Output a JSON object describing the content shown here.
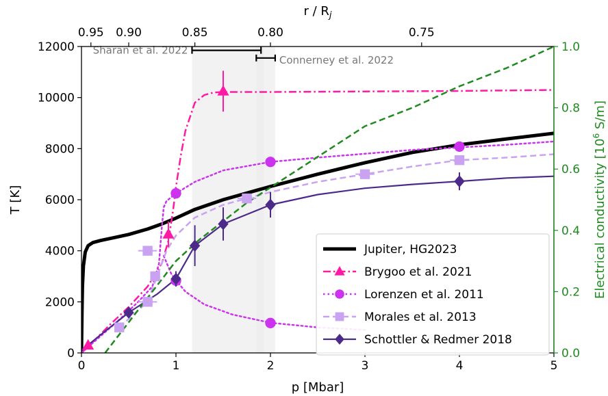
{
  "chart_data": {
    "type": "line",
    "xlabel": "p [Mbar]",
    "ylabel": "T [K]",
    "y2label": "Electrical conductivity [10",
    "y2label_sup": "6",
    "y2label_tail": " S/m]",
    "top_xlabel": "r / R",
    "top_xlabel_sub": "j",
    "xlim": [
      0,
      5
    ],
    "ylim": [
      0,
      12000
    ],
    "y2lim": [
      0.0,
      1.0
    ],
    "x_ticks": [
      0,
      1,
      2,
      3,
      4,
      5
    ],
    "y_ticks": [
      0,
      2000,
      4000,
      6000,
      8000,
      10000,
      12000
    ],
    "y2_ticks": [
      0.0,
      0.2,
      0.4,
      0.6,
      0.8,
      1.0
    ],
    "y2_tick_labels": [
      "0.0",
      "0.2",
      "0.4",
      "0.6",
      "0.8",
      "1.0"
    ],
    "top_ticks": [
      {
        "label": "0.95",
        "p": 0.1
      },
      {
        "label": "0.90",
        "p": 0.5
      },
      {
        "label": "0.85",
        "p": 1.2
      },
      {
        "label": "0.80",
        "p": 2.0
      },
      {
        "label": "0.75",
        "p": 3.6
      }
    ],
    "colors": {
      "jupiter": "#000000",
      "brygoo": "#ff1aa6",
      "lorenzen": "#cc33ee",
      "morales": "#c9a3f2",
      "schottler": "#4b2a8a",
      "conductivity": "#1f8a1f",
      "band": "#ececec"
    },
    "bands": [
      {
        "from": 1.17,
        "to": 2.05
      },
      {
        "from": 1.85,
        "to": 1.93
      }
    ],
    "annotations": [
      {
        "text": "Sharan et al. 2022",
        "bar": [
          1.17,
          1.9
        ],
        "y": 11850
      },
      {
        "text": "Connerney et al. 2022",
        "bar": [
          1.85,
          2.05
        ],
        "y": 11550
      }
    ],
    "legend": {
      "position": "lower-right"
    },
    "series": [
      {
        "name": "Jupiter, HG2023",
        "key": "jupiter",
        "style": "solid",
        "width": 5,
        "axis": "left",
        "x": [
          0.0,
          0.005,
          0.01,
          0.02,
          0.04,
          0.07,
          0.12,
          0.2,
          0.35,
          0.5,
          0.7,
          0.85,
          1.0,
          1.2,
          1.5,
          2.0,
          2.5,
          3.0,
          3.5,
          4.0,
          4.5,
          5.0
        ],
        "y": [
          0,
          1500,
          2600,
          3400,
          3950,
          4200,
          4320,
          4400,
          4520,
          4640,
          4850,
          5050,
          5280,
          5620,
          6000,
          6520,
          7000,
          7450,
          7850,
          8150,
          8380,
          8600
        ]
      },
      {
        "name": "Brygoo et al. 2021",
        "key": "brygoo",
        "style": "dashdot",
        "width": 2.5,
        "axis": "left",
        "marker": "triangle",
        "x": [
          0.0,
          0.1,
          0.3,
          0.5,
          0.7,
          0.85,
          0.92,
          0.97,
          1.0,
          1.05,
          1.1,
          1.2,
          1.3,
          1.4,
          1.5,
          2.0,
          3.0,
          4.0,
          5.0
        ],
        "y": [
          0,
          350,
          1100,
          1800,
          2600,
          3500,
          4400,
          5600,
          6500,
          7700,
          8700,
          9800,
          10100,
          10200,
          10220,
          10220,
          10240,
          10260,
          10300
        ],
        "points": [
          {
            "x": 0.07,
            "y": 300,
            "err": 100
          },
          {
            "x": 0.92,
            "y": 4650,
            "err": 500
          },
          {
            "x": 1.5,
            "y": 10250,
            "err": 800
          }
        ]
      },
      {
        "name": "Lorenzen et al. 2011",
        "key": "lorenzen",
        "style": "dotted",
        "width": 2.5,
        "axis": "left",
        "marker": "circle",
        "branches": [
          {
            "x": [
              0.0,
              0.2,
              0.4,
              0.6,
              0.75,
              0.82,
              0.85,
              0.87,
              0.9,
              1.0,
              1.2,
              1.5,
              2.0,
              2.5,
              3.0,
              3.5,
              4.0,
              4.5,
              5.0
            ],
            "y": [
              0,
              650,
              1300,
              2000,
              2600,
              3500,
              4900,
              5700,
              5950,
              6250,
              6700,
              7150,
              7480,
              7650,
              7800,
              7950,
              8050,
              8150,
              8280
            ]
          },
          {
            "x": [
              0.87,
              0.95,
              1.0,
              1.1,
              1.3,
              1.6,
              2.0,
              2.5,
              3.0
            ],
            "y": [
              3800,
              3100,
              2850,
              2400,
              1900,
              1500,
              1180,
              1000,
              900
            ]
          }
        ],
        "points": [
          {
            "x": 1.0,
            "y": 6250
          },
          {
            "x": 2.0,
            "y": 7480
          },
          {
            "x": 4.0,
            "y": 8080
          },
          {
            "x": 1.0,
            "y": 2830
          },
          {
            "x": 2.0,
            "y": 1170
          }
        ]
      },
      {
        "name": "Morales et al. 2013",
        "key": "morales",
        "style": "dashed",
        "width": 2.5,
        "axis": "left",
        "marker": "square",
        "x": [
          0.4,
          0.55,
          0.7,
          0.8,
          0.9,
          1.0,
          1.2,
          1.5,
          1.75,
          2.0,
          2.5,
          3.0,
          3.5,
          4.0,
          4.5,
          5.0
        ],
        "y": [
          1000,
          1500,
          2000,
          3000,
          4000,
          4600,
          5300,
          5800,
          6050,
          6300,
          6700,
          7000,
          7300,
          7550,
          7650,
          7780
        ],
        "points": [
          {
            "x": 0.4,
            "y": 1000,
            "xerr": 0.05
          },
          {
            "x": 0.7,
            "y": 2000,
            "xerr": 0.1
          },
          {
            "x": 0.7,
            "y": 4000,
            "xerr": 0.1
          },
          {
            "x": 0.78,
            "y": 3000,
            "xerr": 0.04
          },
          {
            "x": 1.75,
            "y": 6050,
            "xerr": 0.1
          },
          {
            "x": 3.0,
            "y": 7000,
            "xerr": 0.1
          },
          {
            "x": 4.0,
            "y": 7550,
            "xerr": 0.1
          }
        ]
      },
      {
        "name": "Schottler & Redmer 2018",
        "key": "schottler",
        "style": "solid",
        "width": 2.2,
        "axis": "left",
        "marker": "diamond",
        "x": [
          0.0,
          0.2,
          0.5,
          0.8,
          1.0,
          1.2,
          1.5,
          2.0,
          2.5,
          3.0,
          3.5,
          4.0,
          4.5,
          5.0
        ],
        "y": [
          100,
          700,
          1580,
          2300,
          2900,
          4200,
          5050,
          5800,
          6200,
          6450,
          6600,
          6720,
          6850,
          6920
        ],
        "points": [
          {
            "x": 0.5,
            "y": 1580,
            "err": 150
          },
          {
            "x": 1.0,
            "y": 2900,
            "err": 300
          },
          {
            "x": 1.2,
            "y": 4200,
            "err": 800
          },
          {
            "x": 1.5,
            "y": 5050,
            "err": 650
          },
          {
            "x": 2.0,
            "y": 5800,
            "err": 500
          },
          {
            "x": 4.0,
            "y": 6720,
            "err": 350
          }
        ]
      },
      {
        "key": "conductivity",
        "style": "dashed",
        "width": 2.5,
        "axis": "right",
        "x": [
          0.25,
          0.5,
          0.75,
          1.0,
          1.25,
          1.5,
          1.75,
          2.0,
          2.5,
          3.0,
          3.5,
          4.0,
          4.5,
          5.0
        ],
        "y": [
          0.0,
          0.1,
          0.2,
          0.3,
          0.37,
          0.43,
          0.49,
          0.54,
          0.64,
          0.74,
          0.8,
          0.87,
          0.93,
          1.0
        ]
      }
    ]
  }
}
